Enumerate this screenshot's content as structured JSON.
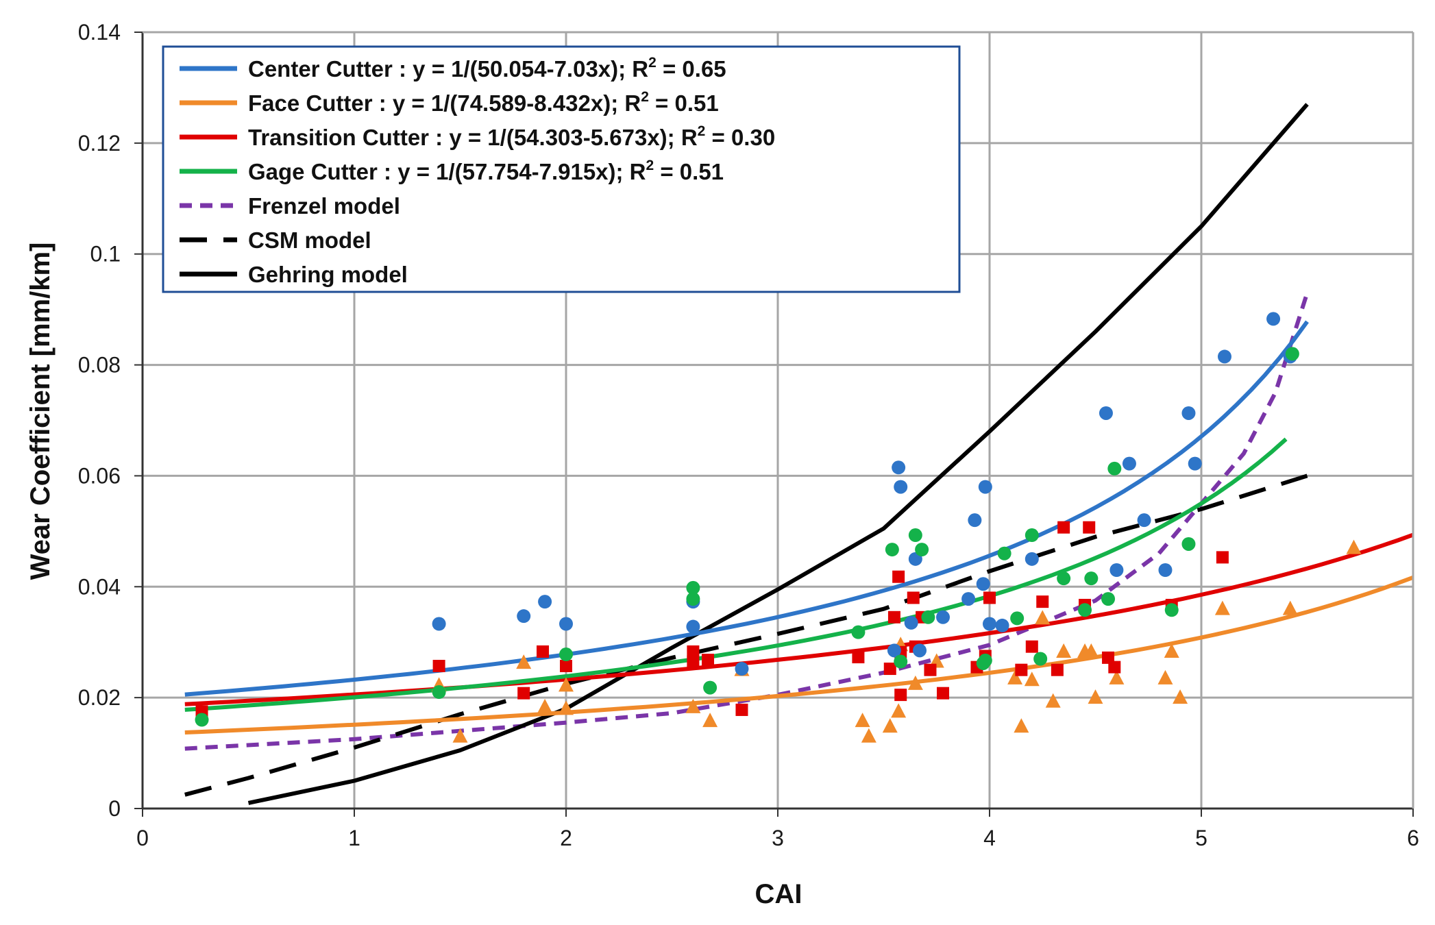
{
  "chart_data": {
    "type": "scatter",
    "xlabel": "CAI",
    "ylabel": "Wear Coefficient [mm/km]",
    "xlim": [
      0,
      6
    ],
    "ylim": [
      0,
      0.14
    ],
    "x_ticks": [
      "0",
      "1",
      "2",
      "3",
      "4",
      "5",
      "6"
    ],
    "y_ticks": [
      "0",
      "0.02",
      "0.04",
      "0.06",
      "0.08",
      "0.1",
      "0.12",
      "0.14"
    ],
    "grid": true,
    "legend_position": "top-left",
    "colors": {
      "center": "#2e75c8",
      "face": "#f08a2a",
      "transition": "#e00000",
      "gage": "#14b24a",
      "frenzel": "#7a35a8",
      "csm": "#000000",
      "gehring": "#000000",
      "grid": "#a6a6a6"
    },
    "legend": [
      {
        "key": "center",
        "label": "Center  Cutter : y = 1/(50.054-7.03x); R",
        "sup": "2",
        "tail": " = 0.65",
        "style": "solid"
      },
      {
        "key": "face",
        "label": "Face Cutter : y = 1/(74.589-8.432x); R",
        "sup": "2",
        "tail": " = 0.51",
        "style": "solid"
      },
      {
        "key": "transition",
        "label": "Transition  Cutter : y = 1/(54.303-5.673x); R",
        "sup": "2",
        "tail": " = 0.30",
        "style": "solid"
      },
      {
        "key": "gage",
        "label": "Gage Cutter : y = 1/(57.754-7.915x); R",
        "sup": "2",
        "tail": " = 0.51",
        "style": "solid"
      },
      {
        "key": "frenzel",
        "label": "Frenzel model",
        "sup": "",
        "tail": "",
        "style": "dotted"
      },
      {
        "key": "csm",
        "label": "CSM model",
        "sup": "",
        "tail": "",
        "style": "dashed"
      },
      {
        "key": "gehring",
        "label": "Gehring model",
        "sup": "",
        "tail": "",
        "style": "solid"
      }
    ],
    "fits": [
      {
        "key": "center",
        "name": "Center Cutter fit",
        "a": 50.054,
        "b": 7.03,
        "x_range": [
          0.2,
          5.5
        ]
      },
      {
        "key": "face",
        "name": "Face Cutter fit",
        "a": 74.589,
        "b": 8.432,
        "x_range": [
          0.2,
          6.0
        ]
      },
      {
        "key": "transition",
        "name": "Transition Cutter fit",
        "a": 54.303,
        "b": 5.673,
        "x_range": [
          0.2,
          6.0
        ]
      },
      {
        "key": "gage",
        "name": "Gage Cutter fit",
        "a": 57.754,
        "b": 7.915,
        "x_range": [
          0.2,
          5.4
        ]
      }
    ],
    "models": [
      {
        "key": "frenzel",
        "name": "Frenzel model",
        "style": "dotted",
        "points": [
          [
            0.2,
            0.0108
          ],
          [
            1.0,
            0.0125
          ],
          [
            2.0,
            0.0155
          ],
          [
            2.5,
            0.0172
          ],
          [
            3.0,
            0.0205
          ],
          [
            3.5,
            0.0245
          ],
          [
            4.0,
            0.0295
          ],
          [
            4.5,
            0.0375
          ],
          [
            4.8,
            0.046
          ],
          [
            5.0,
            0.055
          ],
          [
            5.2,
            0.064
          ],
          [
            5.35,
            0.075
          ],
          [
            5.5,
            0.093
          ]
        ]
      },
      {
        "key": "csm",
        "name": "CSM model",
        "style": "dashed",
        "points": [
          [
            0.2,
            0.0025
          ],
          [
            0.5,
            0.0055
          ],
          [
            1.0,
            0.011
          ],
          [
            1.5,
            0.017
          ],
          [
            2.0,
            0.0225
          ],
          [
            2.5,
            0.0272
          ],
          [
            3.0,
            0.0315
          ],
          [
            3.5,
            0.036
          ],
          [
            4.0,
            0.0428
          ],
          [
            4.5,
            0.049
          ],
          [
            5.0,
            0.054
          ],
          [
            5.5,
            0.06
          ]
        ]
      },
      {
        "key": "gehring",
        "name": "Gehring model",
        "style": "solid",
        "points": [
          [
            0.5,
            0.001
          ],
          [
            1.0,
            0.005
          ],
          [
            1.5,
            0.0105
          ],
          [
            2.0,
            0.018
          ],
          [
            2.5,
            0.029
          ],
          [
            3.0,
            0.0395
          ],
          [
            3.5,
            0.0505
          ],
          [
            4.0,
            0.068
          ],
          [
            4.5,
            0.086
          ],
          [
            5.0,
            0.105
          ],
          [
            5.5,
            0.127
          ]
        ]
      }
    ],
    "series": [
      {
        "key": "center",
        "name": "Center Cutter",
        "marker": "circle",
        "points": [
          [
            1.4,
            0.0333
          ],
          [
            1.8,
            0.0347
          ],
          [
            1.9,
            0.0373
          ],
          [
            2.0,
            0.0333
          ],
          [
            2.6,
            0.0373
          ],
          [
            2.6,
            0.0328
          ],
          [
            2.83,
            0.0252
          ],
          [
            3.55,
            0.0285
          ],
          [
            3.57,
            0.0615
          ],
          [
            3.58,
            0.058
          ],
          [
            3.63,
            0.0335
          ],
          [
            3.65,
            0.045
          ],
          [
            3.67,
            0.0285
          ],
          [
            3.78,
            0.0345
          ],
          [
            3.9,
            0.0378
          ],
          [
            3.93,
            0.052
          ],
          [
            3.97,
            0.0405
          ],
          [
            3.98,
            0.058
          ],
          [
            4.0,
            0.0333
          ],
          [
            4.06,
            0.033
          ],
          [
            4.2,
            0.045
          ],
          [
            4.55,
            0.0713
          ],
          [
            4.6,
            0.043
          ],
          [
            4.66,
            0.0622
          ],
          [
            4.73,
            0.052
          ],
          [
            4.83,
            0.043
          ],
          [
            4.94,
            0.0713
          ],
          [
            4.97,
            0.0622
          ],
          [
            5.11,
            0.0815
          ],
          [
            5.34,
            0.0883
          ],
          [
            5.42,
            0.0815
          ]
        ]
      },
      {
        "key": "face",
        "name": "Face Cutter",
        "marker": "triangle",
        "points": [
          [
            1.4,
            0.0222
          ],
          [
            1.5,
            0.013
          ],
          [
            1.8,
            0.0263
          ],
          [
            1.9,
            0.0183
          ],
          [
            2.0,
            0.0222
          ],
          [
            2.0,
            0.018
          ],
          [
            2.6,
            0.0183
          ],
          [
            2.68,
            0.0158
          ],
          [
            2.83,
            0.025
          ],
          [
            3.4,
            0.0158
          ],
          [
            3.43,
            0.013
          ],
          [
            3.53,
            0.0148
          ],
          [
            3.57,
            0.0175
          ],
          [
            3.58,
            0.0295
          ],
          [
            3.65,
            0.0225
          ],
          [
            3.75,
            0.0265
          ],
          [
            3.97,
            0.0268
          ],
          [
            4.12,
            0.0235
          ],
          [
            4.15,
            0.0148
          ],
          [
            4.2,
            0.0232
          ],
          [
            4.25,
            0.0343
          ],
          [
            4.3,
            0.0193
          ],
          [
            4.35,
            0.0283
          ],
          [
            4.45,
            0.0283
          ],
          [
            4.48,
            0.0283
          ],
          [
            4.5,
            0.02
          ],
          [
            4.6,
            0.0235
          ],
          [
            4.83,
            0.0235
          ],
          [
            4.86,
            0.0283
          ],
          [
            4.9,
            0.02
          ],
          [
            5.1,
            0.036
          ],
          [
            5.42,
            0.036
          ],
          [
            5.72,
            0.047
          ]
        ]
      },
      {
        "key": "transition",
        "name": "Transition Cutter",
        "marker": "square",
        "points": [
          [
            0.28,
            0.0175
          ],
          [
            1.4,
            0.0257
          ],
          [
            1.8,
            0.0208
          ],
          [
            1.89,
            0.0283
          ],
          [
            2.0,
            0.0257
          ],
          [
            2.6,
            0.0283
          ],
          [
            2.6,
            0.0265
          ],
          [
            2.67,
            0.0268
          ],
          [
            2.83,
            0.0178
          ],
          [
            3.38,
            0.0273
          ],
          [
            3.53,
            0.0252
          ],
          [
            3.55,
            0.0345
          ],
          [
            3.57,
            0.0418
          ],
          [
            3.58,
            0.0282
          ],
          [
            3.58,
            0.0205
          ],
          [
            3.64,
            0.038
          ],
          [
            3.65,
            0.0292
          ],
          [
            3.68,
            0.0345
          ],
          [
            3.72,
            0.025
          ],
          [
            3.78,
            0.0208
          ],
          [
            3.94,
            0.0255
          ],
          [
            3.98,
            0.0275
          ],
          [
            4.0,
            0.038
          ],
          [
            4.15,
            0.025
          ],
          [
            4.2,
            0.0292
          ],
          [
            4.25,
            0.0373
          ],
          [
            4.32,
            0.025
          ],
          [
            4.35,
            0.0507
          ],
          [
            4.45,
            0.0367
          ],
          [
            4.47,
            0.0507
          ],
          [
            4.56,
            0.0272
          ],
          [
            4.59,
            0.0255
          ],
          [
            4.86,
            0.0367
          ],
          [
            5.1,
            0.0453
          ]
        ]
      },
      {
        "key": "gage",
        "name": "Gage Cutter",
        "marker": "circle",
        "points": [
          [
            0.28,
            0.016
          ],
          [
            1.4,
            0.021
          ],
          [
            2.0,
            0.0278
          ],
          [
            2.6,
            0.0398
          ],
          [
            2.6,
            0.0378
          ],
          [
            2.68,
            0.0218
          ],
          [
            3.38,
            0.0318
          ],
          [
            3.54,
            0.0467
          ],
          [
            3.58,
            0.0265
          ],
          [
            3.65,
            0.0493
          ],
          [
            3.68,
            0.0467
          ],
          [
            3.71,
            0.0345
          ],
          [
            3.97,
            0.0262
          ],
          [
            3.98,
            0.0267
          ],
          [
            4.07,
            0.046
          ],
          [
            4.13,
            0.0343
          ],
          [
            4.2,
            0.0493
          ],
          [
            4.24,
            0.027
          ],
          [
            4.35,
            0.0415
          ],
          [
            4.45,
            0.0358
          ],
          [
            4.48,
            0.0415
          ],
          [
            4.56,
            0.0378
          ],
          [
            4.59,
            0.0613
          ],
          [
            4.86,
            0.0358
          ],
          [
            4.94,
            0.0477
          ],
          [
            5.43,
            0.082
          ]
        ]
      }
    ]
  }
}
